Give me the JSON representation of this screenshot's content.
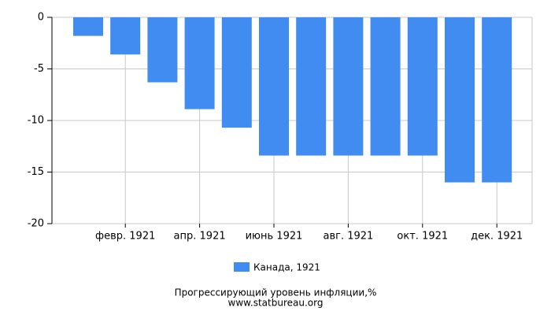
{
  "chart_data": {
    "type": "bar",
    "categories": [
      null,
      "февр. 1921",
      null,
      "апр. 1921",
      null,
      "июнь 1921",
      null,
      "авг. 1921",
      null,
      "окт. 1921",
      null,
      "дек. 1921"
    ],
    "series": [
      {
        "name": "Канада, 1921",
        "color": "#418cf0",
        "values": [
          -1.8,
          -3.6,
          -6.3,
          -8.9,
          -10.7,
          -13.4,
          -13.4,
          -13.4,
          -13.4,
          -13.4,
          -16.0,
          -16.0
        ]
      }
    ],
    "ylim": [
      -20,
      0
    ],
    "yticks": [
      0,
      -5,
      -10,
      -15,
      -20
    ],
    "grid": true,
    "title": "Прогрессирующий уровень инфляции,%",
    "source": "www.statbureau.org"
  }
}
